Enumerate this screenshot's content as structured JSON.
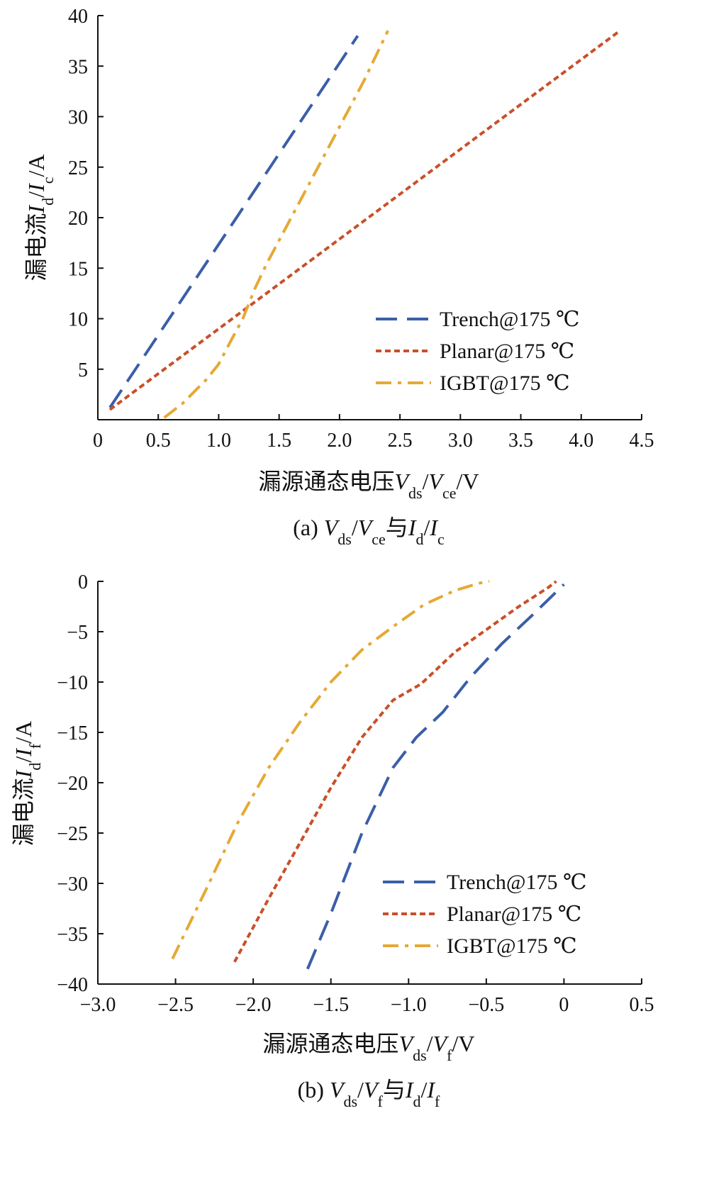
{
  "chart_data": [
    {
      "type": "line",
      "caption": "(a) V_ds/V_ce与I_d/I_c",
      "xlabel": "漏源通态电压V_ds/V_ce/V",
      "ylabel": "漏电流I_d/I_c/A",
      "xlim": [
        0,
        4.5
      ],
      "ylim": [
        0,
        40
      ],
      "xticks": [
        "0",
        "0.5",
        "1.0",
        "1.5",
        "2.0",
        "2.5",
        "3.0",
        "3.5",
        "4.0",
        "4.5"
      ],
      "yticks": [
        "40",
        "35",
        "30",
        "25",
        "20",
        "15",
        "10",
        "5"
      ],
      "legend_position": "bottom-right",
      "grid": false,
      "series": [
        {
          "name": "Trench@175 ℃",
          "color": "#3b5ea8",
          "style": "dash",
          "x": [
            0.1,
            2.15
          ],
          "y": [
            1.2,
            38
          ]
        },
        {
          "name": "Planar@175 ℃",
          "color": "#c8502a",
          "style": "dot",
          "x": [
            0.1,
            4.32
          ],
          "y": [
            1.0,
            38.5
          ]
        },
        {
          "name": "IGBT@175 ℃",
          "color": "#e5a935",
          "style": "dashdot",
          "x": [
            0.55,
            0.7,
            0.9,
            1.0,
            1.1,
            1.2,
            1.3,
            1.4,
            1.6,
            1.8,
            2.0,
            2.2,
            2.4
          ],
          "y": [
            0.2,
            1.6,
            4.0,
            5.5,
            7.8,
            10.0,
            13.0,
            15.5,
            20.0,
            24.5,
            29.0,
            33.5,
            38.5
          ]
        }
      ]
    },
    {
      "type": "line",
      "caption": "(b) V_ds/V_f与I_d/I_f",
      "xlabel": "漏源通态电压V_ds/V_f/V",
      "ylabel": "漏电流I_d/I_f/A",
      "xlim": [
        -3.0,
        0.5
      ],
      "ylim": [
        -40,
        0
      ],
      "xticks": [
        "−3.0",
        "−2.5",
        "−2.0",
        "−1.5",
        "−1.0",
        "−0.5",
        "0",
        "0.5"
      ],
      "yticks": [
        "0",
        "−5",
        "−10",
        "−15",
        "−20",
        "−25",
        "−30",
        "−35",
        "−40"
      ],
      "legend_position": "bottom-right",
      "grid": false,
      "series": [
        {
          "name": "Trench@175 ℃",
          "color": "#3b5ea8",
          "style": "dash",
          "x": [
            -1.65,
            -1.5,
            -1.3,
            -1.1,
            -0.95,
            -0.78,
            -0.6,
            -0.4,
            -0.2,
            0.0
          ],
          "y": [
            -38.5,
            -33.0,
            -25.0,
            -18.5,
            -15.5,
            -13.0,
            -9.5,
            -6.2,
            -3.3,
            -0.3
          ]
        },
        {
          "name": "Planar@175 ℃",
          "color": "#c8502a",
          "style": "dot",
          "x": [
            -2.12,
            -1.9,
            -1.7,
            -1.5,
            -1.3,
            -1.1,
            -0.92,
            -0.7,
            -0.5,
            -0.3,
            -0.1,
            -0.05
          ],
          "y": [
            -37.8,
            -31.5,
            -26.0,
            -20.5,
            -15.5,
            -11.8,
            -10.2,
            -7.0,
            -4.8,
            -2.6,
            -0.6,
            0.0
          ]
        },
        {
          "name": "IGBT@175 ℃",
          "color": "#e5a935",
          "style": "dashdot",
          "x": [
            -2.52,
            -2.3,
            -2.1,
            -1.9,
            -1.7,
            -1.5,
            -1.3,
            -1.1,
            -0.9,
            -0.7,
            -0.55,
            -0.48
          ],
          "y": [
            -37.5,
            -30.5,
            -24.0,
            -18.5,
            -14.0,
            -10.0,
            -6.8,
            -4.5,
            -2.3,
            -0.9,
            -0.2,
            0.0
          ]
        }
      ]
    }
  ]
}
